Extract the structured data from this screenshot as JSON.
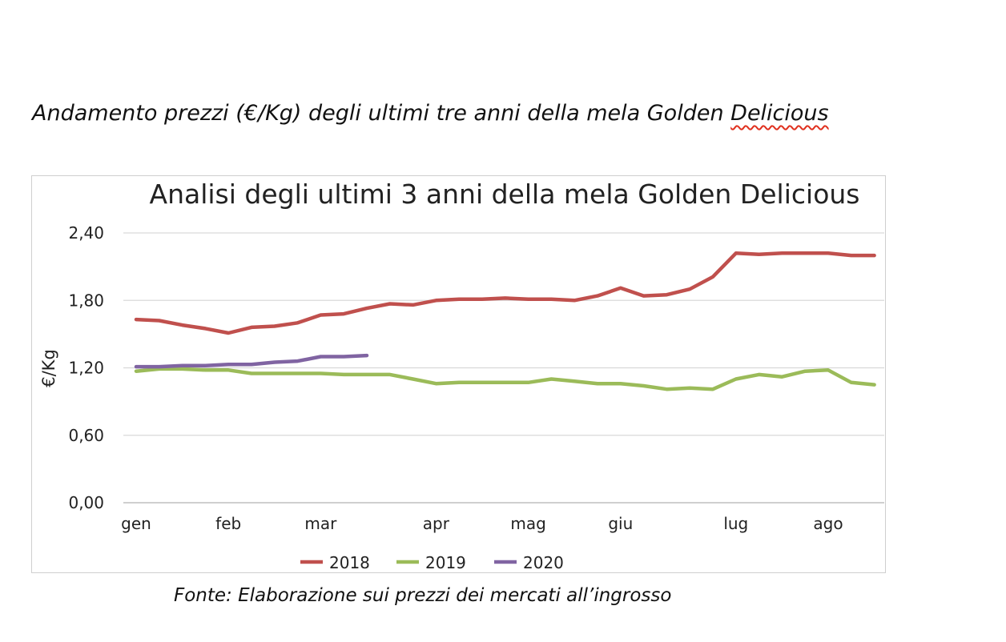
{
  "heading": {
    "text": "Andamento prezzi (€/Kg) degli ultimi tre anni della mela Golden",
    "underlined_word": "Delicious"
  },
  "footer": {
    "text": "Fonte: Elaborazione sui prezzi dei mercati all’ingrosso"
  },
  "chart_data": {
    "type": "line",
    "title": "Analisi degli ultimi 3 anni della mela Golden Delicious",
    "xlabel": "",
    "ylabel": "€/Kg",
    "ylim": [
      0,
      2.4
    ],
    "yticks": [
      "0,00",
      "0,60",
      "1,20",
      "1,80",
      "2,40"
    ],
    "x_tick_labels": [
      {
        "label": "gen",
        "index": 0
      },
      {
        "label": "feb",
        "index": 4
      },
      {
        "label": "mar",
        "index": 8
      },
      {
        "label": "apr",
        "index": 13
      },
      {
        "label": "mag",
        "index": 17
      },
      {
        "label": "giu",
        "index": 21
      },
      {
        "label": "lug",
        "index": 26
      },
      {
        "label": "ago",
        "index": 30
      }
    ],
    "grid": true,
    "legend_position": "bottom",
    "series": [
      {
        "name": "2018",
        "color": "#c0504d",
        "values": [
          1.63,
          1.62,
          1.58,
          1.55,
          1.51,
          1.56,
          1.57,
          1.6,
          1.67,
          1.68,
          1.73,
          1.77,
          1.76,
          1.8,
          1.81,
          1.81,
          1.82,
          1.81,
          1.81,
          1.8,
          1.84,
          1.91,
          1.84,
          1.85,
          1.9,
          2.01,
          2.22,
          2.21,
          2.22,
          2.22,
          2.22,
          2.2,
          2.2
        ]
      },
      {
        "name": "2019",
        "color": "#9bbb59",
        "values": [
          1.17,
          1.19,
          1.19,
          1.18,
          1.18,
          1.15,
          1.15,
          1.15,
          1.15,
          1.14,
          1.14,
          1.14,
          1.1,
          1.06,
          1.07,
          1.07,
          1.07,
          1.07,
          1.1,
          1.08,
          1.06,
          1.06,
          1.04,
          1.01,
          1.02,
          1.01,
          1.1,
          1.14,
          1.12,
          1.17,
          1.18,
          1.07,
          1.05
        ]
      },
      {
        "name": "2020",
        "color": "#8064a2",
        "values": [
          1.21,
          1.21,
          1.22,
          1.22,
          1.23,
          1.23,
          1.25,
          1.26,
          1.3,
          1.3,
          1.31
        ]
      }
    ]
  }
}
